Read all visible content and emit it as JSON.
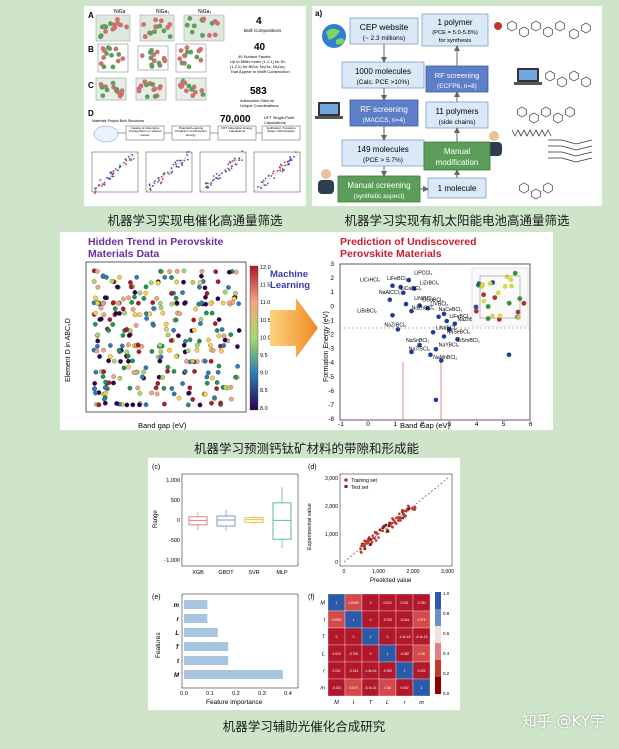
{
  "panels": {
    "catalysis": {
      "caption": "机器学习实现电催化高通量筛选",
      "row_labels": [
        "A",
        "B",
        "C",
        "D"
      ],
      "top_labels": [
        "NiGa",
        "NiGa₃",
        "NiGa₃"
      ],
      "counts": [
        {
          "num": "4",
          "text": [
            "Bulk Compositions"
          ]
        },
        {
          "num": "40",
          "text": [
            "40 Surface Facets",
            "Up to Miller Index (1,1,1) for Ni,",
            "(1,2,2) for NiGa, Ni₃Ga, Ni₅Ga₃,",
            "That Appear in Wulff Construction"
          ]
        },
        {
          "num": "583",
          "text": [
            "Adsorption Sites w/",
            "Unique Coordinations"
          ]
        },
        {
          "num": "70,000",
          "text": [
            "DFT Single-Point",
            "Calculations"
          ]
        }
      ],
      "flow_start": "Materials Project Bulk Structures",
      "flow_steps": [
        "Catalog of Adsorption Configuration on Various Facets",
        "Potential Learning Prediction of Adsorption Energy",
        "DFT Adsorption Energy Calculations",
        "Verification, Transition States, Microkinetics"
      ]
    },
    "solar": {
      "caption": "机器学习实现有机太阳能电池高通量筛选",
      "tag": "a)",
      "boxes": {
        "cep": [
          "CEP website",
          "(~ 2.3 millions)"
        ],
        "m1000": [
          "1000 molecules",
          "(Calc. PCE >10%)"
        ],
        "rf1": [
          "RF screening",
          "(MACCS, n=4)"
        ],
        "m149": [
          "149 molecules",
          "(PCE > 5.7%)"
        ],
        "manual_screen": [
          "Manual screening",
          "(synthetic aspect)"
        ],
        "polymer1": [
          "1 polymer",
          "(PCE = 5.0-5.8%)",
          "for synthesis"
        ],
        "rf2": [
          "RF screening",
          "(ECFP6, n=8)"
        ],
        "p11": [
          "11 polymers",
          "(side chains)"
        ],
        "manual_mod": [
          "Manual",
          "modification"
        ],
        "molecule1": [
          "1 molecule"
        ]
      }
    },
    "perovskite": {
      "caption": "机器学习预测钙钛矿材料的带隙和形成能",
      "left_title": [
        "Hidden Trend in Perovskite",
        "Materials Data"
      ],
      "left_xlabel": "Band gap (eV)",
      "left_ylabel": "Element D in ABC₂D",
      "arrow_text": [
        "Machine",
        "Learning"
      ],
      "right_title": [
        "Prediction of Undiscovered",
        "Perovskite Materials"
      ],
      "right_xlabel": "Band Gap (eV)",
      "right_ylabel": "Formation Energy (eV)",
      "right_yticks": [
        "3",
        "2",
        "1",
        "0",
        "-1",
        "-2",
        "-3",
        "-4",
        "-5",
        "-6",
        "-7",
        "-8"
      ],
      "right_xticks": [
        "-1",
        "0",
        "1",
        "2",
        "3",
        "4",
        "5",
        "6"
      ],
      "point_labels": [
        "LiPCCl₂",
        "LiCrHCl₂",
        "LiFeBCl₂",
        "LiZrBCl₃",
        "NaAlCCl₂",
        "LiCaBCl₂",
        "LiNiBCl₃",
        "LiCuBCl₂",
        "LiVBCl₂",
        "NaZnBCl₂",
        "LiBrBCl₂",
        "NaCeBCl₂",
        "LiFeBCl₂",
        "NaZnBCl₂",
        "NaZrBCl₂",
        "LiNdBCl₂",
        "NaSeBCl₂",
        "LiSmBCl₂",
        "NaSnBCl₂",
        "NaYBCl₂",
        "NaTiSCl₂",
        "NaMnBCl₂"
      ]
    },
    "photocat": {
      "caption": "机器学习辅助光催化合成研究",
      "c": {
        "tag": "(c)",
        "ylabel": "Range",
        "yticks": [
          "1,000",
          "500",
          "0",
          "-500",
          "-1,000"
        ],
        "categories": [
          "XGB",
          "GBDT",
          "SVR",
          "MLP"
        ]
      },
      "d": {
        "tag": "(d)",
        "xlabel": "Predicted value",
        "ylabel": "Experimental value",
        "ticks": [
          "0",
          "1,000",
          "2,000",
          "3,000"
        ],
        "legend": [
          "Training set",
          "Test set"
        ]
      },
      "e": {
        "tag": "(e)",
        "xlabel": "Feature importance",
        "ylabel": "Features",
        "xticks": [
          "0.0",
          "0.1",
          "0.2",
          "0.3",
          "0.4"
        ]
      },
      "f": {
        "tag": "(f)",
        "labels": [
          "M",
          "t",
          "T",
          "L",
          "r",
          "m"
        ],
        "colorbar_ticks": [
          "1.0",
          "0.8",
          "0.6",
          "0.4",
          "0.2",
          "0.0"
        ]
      }
    }
  },
  "chart_data": [
    {
      "type": "bar",
      "title": "",
      "xlabel": "Feature importance",
      "ylabel": "Features",
      "categories": [
        "m",
        "r",
        "L",
        "T",
        "t",
        "M"
      ],
      "values": [
        0.09,
        0.09,
        0.13,
        0.17,
        0.17,
        0.38
      ],
      "xlim": [
        0,
        0.4
      ]
    },
    {
      "type": "table",
      "title": "",
      "rows": [
        "M",
        "t",
        "T",
        "L",
        "r",
        "m"
      ],
      "columns": [
        "M",
        "t",
        "T",
        "L",
        "r",
        "m"
      ],
      "values": [
        [
          "1",
          "0.0993",
          "0",
          "0.023",
          "0.031",
          "-0.031"
        ],
        [
          "0.0993",
          "1",
          "0",
          "-0.376",
          "-0.014",
          "0.079"
        ],
        [
          "0",
          "0",
          "1",
          "0",
          "-1.3e-16",
          "-6.1e-16"
        ],
        [
          "0.023",
          "-0.376",
          "0",
          "1",
          "-0.092",
          "0.08"
        ],
        [
          "0.031",
          "-0.014",
          "-1.3e-16",
          "-0.092",
          "1",
          "0.002"
        ],
        [
          "-0.031",
          "0.079",
          "-6.1e-16",
          "0.08",
          "0.002",
          "1"
        ]
      ]
    }
  ],
  "perov_points": [
    [
      1.5,
      2.0
    ],
    [
      0.9,
      1.6
    ],
    [
      1.2,
      1.5
    ],
    [
      1.7,
      1.4
    ],
    [
      1.3,
      1.1
    ],
    [
      0.8,
      0.6
    ],
    [
      1.4,
      0.3
    ],
    [
      1.9,
      0.2
    ],
    [
      2.2,
      0.0
    ],
    [
      1.6,
      -0.2
    ],
    [
      0.9,
      -0.5
    ],
    [
      2.6,
      -0.6
    ],
    [
      2.9,
      -0.9
    ],
    [
      3.2,
      -1.1
    ],
    [
      1.1,
      -1.5
    ],
    [
      2.4,
      -1.7
    ],
    [
      2.8,
      -2.0
    ],
    [
      3.3,
      -2.2
    ],
    [
      1.9,
      -2.6
    ],
    [
      2.5,
      -2.9
    ],
    [
      1.6,
      -3.1
    ],
    [
      2.3,
      -3.3
    ],
    [
      2.7,
      -3.7
    ],
    [
      5.2,
      -3.3
    ],
    [
      2.5,
      -6.5
    ],
    [
      2.8,
      -0.4
    ],
    [
      3.0,
      -1.5
    ]
  ],
  "watermark": "知乎 @KY宇"
}
